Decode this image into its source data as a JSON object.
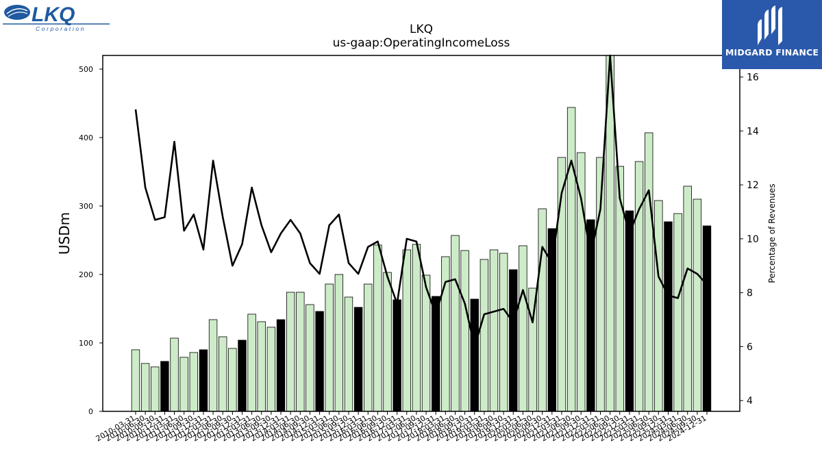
{
  "logos": {
    "company_logo_text": "LKQ",
    "company_logo_subtext": "Corporation",
    "publisher_logo_text": "MIDGARD FINANCE"
  },
  "colors": {
    "bar_light": "#cdebc8",
    "bar_dark": "#000000",
    "line": "#000000",
    "publisher_bg": "#2a59ab",
    "lkq_blue": "#1f5aa0"
  },
  "chart_data": {
    "type": "bar",
    "title": "LKQ",
    "subtitle": "us-gaap:OperatingIncomeLoss",
    "ylabel": "USDm",
    "y2label": "Percentage of Revenues",
    "ylim": [
      0,
      520
    ],
    "y2lim": [
      3.6,
      16.8
    ],
    "yticks": [
      0,
      100,
      200,
      300,
      400,
      500
    ],
    "y2ticks": [
      4,
      6,
      8,
      10,
      12,
      14,
      16
    ],
    "grid": false,
    "categories": [
      "2010-03-31",
      "2010-06-30",
      "2010-09-30",
      "2010-12-31",
      "2011-03-31",
      "2011-06-30",
      "2011-09-30",
      "2011-12-31",
      "2012-03-31",
      "2012-06-30",
      "2012-09-30",
      "2012-12-31",
      "2013-03-31",
      "2013-06-30",
      "2013-09-30",
      "2013-12-31",
      "2014-03-31",
      "2014-06-30",
      "2014-09-30",
      "2014-12-31",
      "2015-03-31",
      "2015-06-30",
      "2015-09-30",
      "2015-12-31",
      "2016-03-31",
      "2016-06-30",
      "2016-09-30",
      "2016-12-31",
      "2017-03-31",
      "2017-06-30",
      "2017-09-30",
      "2017-12-31",
      "2018-03-31",
      "2018-06-30",
      "2018-09-30",
      "2018-12-31",
      "2019-03-31",
      "2019-06-30",
      "2019-09-30",
      "2019-12-31",
      "2020-03-31",
      "2020-06-30",
      "2020-09-30",
      "2020-12-31",
      "2021-03-31",
      "2021-06-30",
      "2021-09-30",
      "2021-12-31",
      "2022-03-31",
      "2022-06-30",
      "2022-09-30",
      "2022-12-31",
      "2023-03-31",
      "2023-06-30",
      "2023-09-30",
      "2023-12-31",
      "2024-03-31",
      "2024-06-30",
      "2024-09-30",
      "2024-12-31"
    ],
    "series": [
      {
        "kind": "bar",
        "values": [
          90,
          70,
          65,
          73,
          107,
          79,
          86,
          90,
          134,
          109,
          92,
          104,
          142,
          131,
          123,
          134,
          174,
          174,
          156,
          146,
          186,
          200,
          167,
          152,
          186,
          243,
          203,
          163,
          236,
          244,
          199,
          168,
          226,
          257,
          235,
          164,
          222,
          236,
          231,
          207,
          242,
          180,
          296,
          267,
          371,
          444,
          378,
          280,
          371,
          522,
          358,
          293,
          365,
          407,
          308,
          277,
          289,
          329,
          310,
          271
        ],
        "dark": [
          false,
          false,
          false,
          true,
          false,
          false,
          false,
          true,
          false,
          false,
          false,
          true,
          false,
          false,
          false,
          true,
          false,
          false,
          false,
          true,
          false,
          false,
          false,
          true,
          false,
          false,
          false,
          true,
          false,
          false,
          false,
          true,
          false,
          false,
          false,
          true,
          false,
          false,
          false,
          true,
          false,
          false,
          false,
          true,
          false,
          false,
          false,
          true,
          false,
          false,
          false,
          true,
          false,
          false,
          false,
          true,
          false,
          false,
          false,
          true
        ]
      },
      {
        "kind": "line",
        "axis": "right",
        "values": [
          14.8,
          11.9,
          10.7,
          10.8,
          13.6,
          10.3,
          10.9,
          9.6,
          12.9,
          10.8,
          9.0,
          9.8,
          11.9,
          10.5,
          9.5,
          10.2,
          10.7,
          10.2,
          9.1,
          8.7,
          10.5,
          10.9,
          9.1,
          8.7,
          9.7,
          9.9,
          8.6,
          7.6,
          10.0,
          9.9,
          8.2,
          7.2,
          8.4,
          8.5,
          7.6,
          6.0,
          7.2,
          7.3,
          7.4,
          6.9,
          8.1,
          6.9,
          9.7,
          9.1,
          11.7,
          12.9,
          11.5,
          9.4,
          11.1,
          16.8,
          11.5,
          10.2,
          11.1,
          11.8,
          8.6,
          7.9,
          7.8,
          8.9,
          8.7,
          8.3
        ]
      }
    ]
  }
}
